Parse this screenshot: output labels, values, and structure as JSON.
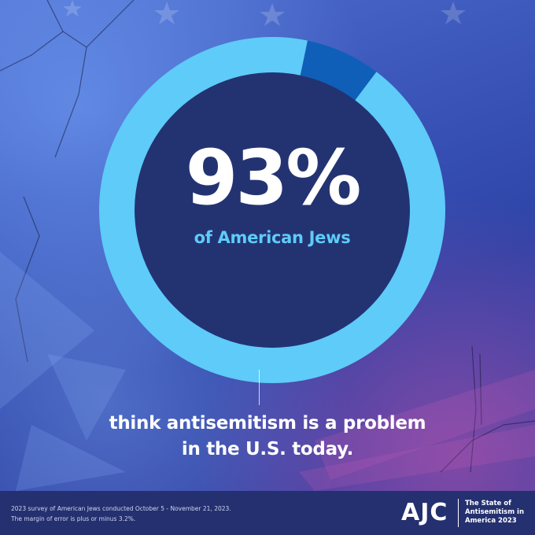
{
  "colors": {
    "ring_main": "#5ecbf8",
    "ring_rest": "#0f5fb8",
    "inner": "#233372",
    "accent_text": "#5ecbf8",
    "footer_bg": "#24306f"
  },
  "chart_data": {
    "type": "pie",
    "style": "donut",
    "slices": [
      {
        "label": "think antisemitism is a problem in the U.S. today",
        "value": 93
      },
      {
        "label": "",
        "value": 7
      }
    ],
    "value_label": "93%",
    "value_caption": "of American Jews"
  },
  "statement": {
    "line1": "think antisemitism is a problem",
    "line2": "in the U.S. today."
  },
  "footer": {
    "note_line1": "2023 survey of American Jews conducted October 5 - November 21, 2023.",
    "note_line2": "The margin of error is plus or minus 3.2%.",
    "logo": "AJC",
    "report_line1": "The State of",
    "report_line2": "Antisemitism in",
    "report_line3": "America 2023"
  }
}
